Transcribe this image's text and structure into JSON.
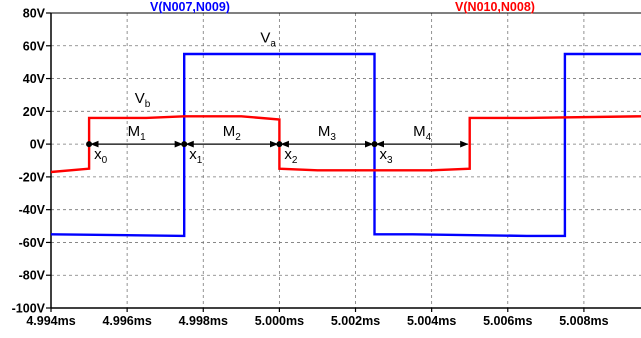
{
  "chart_data": {
    "type": "line",
    "title": "",
    "xlabel": "",
    "ylabel": "",
    "xlim": [
      4.994,
      5.0095
    ],
    "ylim": [
      -100,
      80
    ],
    "grid": true,
    "x_ticks": [
      "4.994ms",
      "4.996ms",
      "4.998ms",
      "5.000ms",
      "5.002ms",
      "5.004ms",
      "5.006ms",
      "5.008ms"
    ],
    "x_tick_values": [
      4.994,
      4.996,
      4.998,
      5.0,
      5.002,
      5.004,
      5.006,
      5.008
    ],
    "y_ticks": [
      "80V",
      "60V",
      "40V",
      "20V",
      "0V",
      "-20V",
      "-40V",
      "-60V",
      "-80V",
      "-100V"
    ],
    "y_tick_values": [
      80,
      60,
      40,
      20,
      0,
      -20,
      -40,
      -60,
      -80,
      -100
    ],
    "series": [
      {
        "name": "V(N007,N009)",
        "color": "#0000ff",
        "points": [
          [
            4.994,
            -55
          ],
          [
            4.9975,
            -56
          ],
          [
            4.9975,
            55
          ],
          [
            4.9985,
            55
          ],
          [
            5.0015,
            55
          ],
          [
            5.0025,
            55
          ],
          [
            5.0025,
            -55
          ],
          [
            5.0035,
            -55
          ],
          [
            5.0065,
            -56
          ],
          [
            5.0075,
            -56
          ],
          [
            5.0075,
            55
          ],
          [
            5.0095,
            55
          ]
        ]
      },
      {
        "name": "V(N010,N008)",
        "color": "#ff0000",
        "points": [
          [
            4.994,
            -17
          ],
          [
            4.995,
            -15
          ],
          [
            4.995,
            16
          ],
          [
            4.9965,
            16
          ],
          [
            4.9975,
            17
          ],
          [
            4.999,
            17
          ],
          [
            5.0,
            15
          ],
          [
            5.0,
            -15
          ],
          [
            5.001,
            -16
          ],
          [
            5.0025,
            -16
          ],
          [
            5.004,
            -16
          ],
          [
            5.005,
            -15
          ],
          [
            5.005,
            16
          ],
          [
            5.0065,
            16
          ],
          [
            5.0095,
            17
          ]
        ]
      }
    ],
    "annotations": {
      "va": {
        "label": "V",
        "sub": "a",
        "x": 4.9995,
        "y": 62
      },
      "vb": {
        "label": "V",
        "sub": "b",
        "x": 4.9962,
        "y": 25
      },
      "markers": [
        {
          "label": "x",
          "sub": "0",
          "x": 4.995
        },
        {
          "label": "x",
          "sub": "1",
          "x": 4.9975
        },
        {
          "label": "x",
          "sub": "2",
          "x": 5.0
        },
        {
          "label": "x",
          "sub": "3",
          "x": 5.0025
        }
      ],
      "intervals": [
        {
          "label": "M",
          "sub": "1",
          "from": 4.995,
          "to": 4.9975
        },
        {
          "label": "M",
          "sub": "2",
          "from": 4.9975,
          "to": 5.0
        },
        {
          "label": "M",
          "sub": "3",
          "from": 5.0,
          "to": 5.0025
        },
        {
          "label": "M",
          "sub": "4",
          "from": 5.0025,
          "to": 5.005
        }
      ]
    }
  }
}
